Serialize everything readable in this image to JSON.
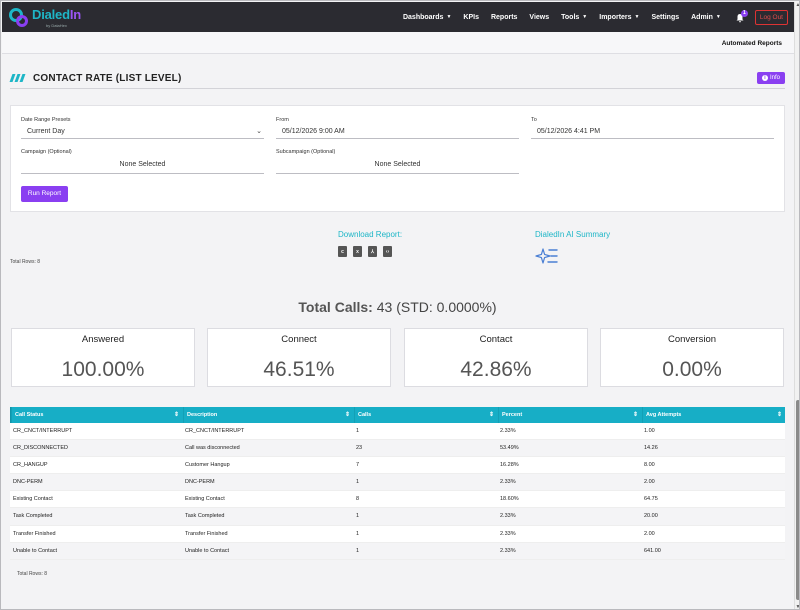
{
  "app": {
    "logo_name_a": "Dialed",
    "logo_name_b": "In",
    "logo_sub": "by DataHex"
  },
  "nav": {
    "items": [
      {
        "label": "Dashboards",
        "caret": true
      },
      {
        "label": "KPIs",
        "caret": false
      },
      {
        "label": "Reports",
        "caret": false
      },
      {
        "label": "Views",
        "caret": false
      },
      {
        "label": "Tools",
        "caret": true
      },
      {
        "label": "Importers",
        "caret": true
      },
      {
        "label": "Settings",
        "caret": false
      },
      {
        "label": "Admin",
        "caret": true
      }
    ],
    "notification_count": "1",
    "logout_label": "Log Out"
  },
  "subheader": {
    "automated_reports": "Automated Reports"
  },
  "page": {
    "title": "CONTACT RATE (LIST LEVEL)",
    "info_label": "Info"
  },
  "form": {
    "date_range_label": "Date Range Presets",
    "date_range_value": "Current Day",
    "from_label": "From",
    "from_value": "05/12/2026 9:00 AM",
    "to_label": "To",
    "to_value": "05/12/2026 4:41 PM",
    "campaign_label": "Campaign (Optional)",
    "campaign_value": "None Selected",
    "subcampaign_label": "Subcampaign (Optional)",
    "subcampaign_value": "None Selected",
    "run_label": "Run Report"
  },
  "downloads": {
    "title": "Download Report:",
    "icons": [
      "csv-file-icon",
      "excel-file-icon",
      "pdf-file-icon",
      "code-file-icon"
    ]
  },
  "ai": {
    "title": "DialedIn AI Summary"
  },
  "total_rows_top": "Total Rows: 8",
  "total_calls": {
    "label": "Total Calls:",
    "value": "43 (STD: 0.0000%)"
  },
  "stats": [
    {
      "label": "Answered",
      "value": "100.00%"
    },
    {
      "label": "Connect",
      "value": "46.51%"
    },
    {
      "label": "Contact",
      "value": "42.86%"
    },
    {
      "label": "Conversion",
      "value": "0.00%"
    }
  ],
  "table": {
    "columns": [
      "Call Status",
      "Description",
      "Calls",
      "Percent",
      "Avg Attempts"
    ],
    "rows": [
      [
        "CR_CNCT/INTERRUPT",
        "CR_CNCT/INTERRUPT",
        "1",
        "2.33%",
        "1.00"
      ],
      [
        "CR_DISCONNECTED",
        "Call was disconnected",
        "23",
        "53.49%",
        "14.26"
      ],
      [
        "CR_HANGUP",
        "Customer Hangup",
        "7",
        "16.28%",
        "8.00"
      ],
      [
        "DNC-PERM",
        "DNC-PERM",
        "1",
        "2.33%",
        "2.00"
      ],
      [
        "Existing Contact",
        "Existing Contact",
        "8",
        "18.60%",
        "64.75"
      ],
      [
        "Task Completed",
        "Task Completed",
        "1",
        "2.33%",
        "20.00"
      ],
      [
        "Transfer Finished",
        "Transfer Finished",
        "1",
        "2.33%",
        "2.00"
      ],
      [
        "Unable to Contact",
        "Unable to Contact",
        "1",
        "2.33%",
        "641.00"
      ]
    ]
  },
  "total_rows_bottom": "Total Rows: 8"
}
